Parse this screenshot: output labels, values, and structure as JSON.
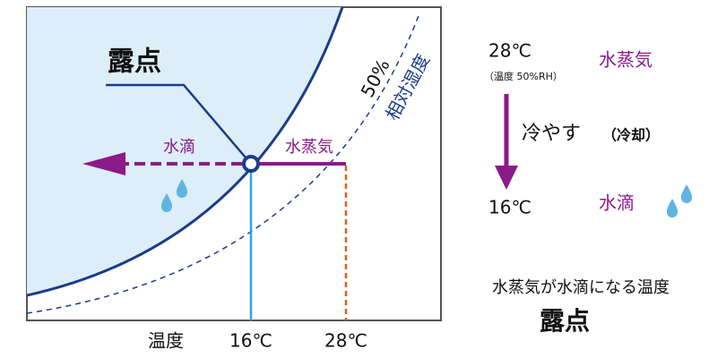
{
  "diagram": {
    "dew_point_label": "露点",
    "curve_label": {
      "percent": "50%",
      "text": "相対湿度"
    },
    "left_arrow_label": "水滴",
    "right_arrow_label": "水蒸気",
    "x_axis": {
      "label": "温度",
      "ticks": [
        "16℃",
        "28℃"
      ]
    }
  },
  "explanation": {
    "start_temp": "28℃",
    "start_condition": "（温度 50%RH）",
    "start_state": "水蒸気",
    "action": "冷やす",
    "action_note": "（冷却）",
    "end_temp": "16℃",
    "end_state": "水滴",
    "definition": "水蒸気が水滴になる温度",
    "term": "露点"
  }
}
